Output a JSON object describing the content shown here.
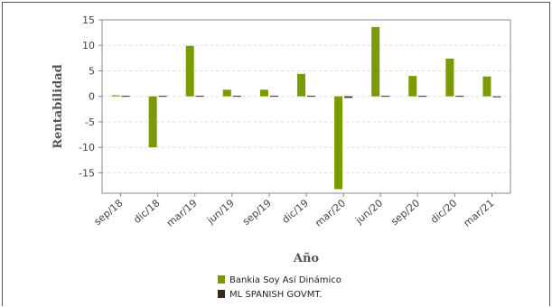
{
  "chart_data": {
    "type": "bar",
    "title": "",
    "xlabel": "Año",
    "ylabel": "Rentabilidad",
    "ylim": [
      -19,
      15
    ],
    "yticks": [
      15,
      10,
      5,
      0,
      -5,
      -10,
      -15
    ],
    "grid": true,
    "legend_position": "bottom",
    "categories": [
      "sep/18",
      "dic/18",
      "mar/19",
      "jun/19",
      "sep/19",
      "dic/19",
      "mar/20",
      "jun/20",
      "sep/20",
      "dic/20",
      "mar/21"
    ],
    "series": [
      {
        "name": "Bankia Soy Así Dinámico",
        "color": "#7a9a01",
        "values": [
          0.2,
          -10.0,
          9.9,
          1.3,
          1.3,
          4.4,
          -18.2,
          13.6,
          4.0,
          7.4,
          3.9
        ]
      },
      {
        "name": "ML SPANISH GOVMT.",
        "color": "#3a2a1a",
        "values": [
          0.1,
          0.1,
          0.1,
          0.1,
          0.1,
          0.1,
          -0.3,
          0.1,
          0.1,
          0.1,
          -0.1
        ]
      }
    ]
  }
}
